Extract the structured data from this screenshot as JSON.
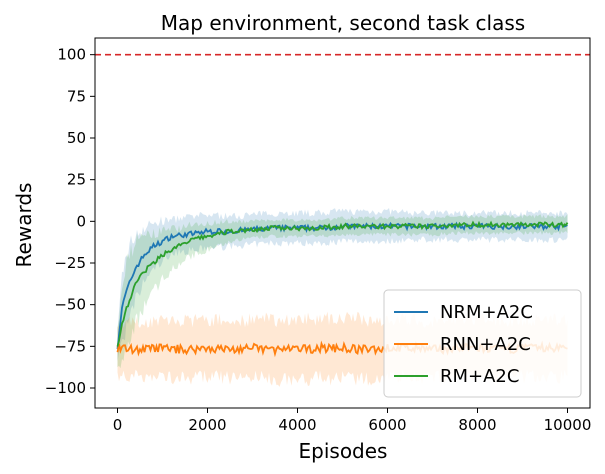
{
  "chart_data": {
    "type": "line",
    "title": "Map environment, second task class",
    "xlabel": "Episodes",
    "ylabel": "Rewards",
    "xlim": [
      -500,
      10500
    ],
    "ylim": [
      -112,
      110
    ],
    "xticks": [
      0,
      2000,
      4000,
      6000,
      8000,
      10000
    ],
    "yticks": [
      100,
      75,
      50,
      25,
      0,
      -25,
      -50,
      -75,
      -100
    ],
    "xtick_labels": [
      "0",
      "2000",
      "4000",
      "6000",
      "8000",
      "10000"
    ],
    "ytick_labels": [
      "100",
      "75",
      "50",
      "25",
      "0",
      "−25",
      "−50",
      "−75",
      "−100"
    ],
    "reference_line": {
      "y": 100,
      "color": "#d62728",
      "style": "dashed"
    },
    "legend_position": "lower-right",
    "grid": false,
    "series": [
      {
        "name": "NRM+A2C",
        "color": "#1f77b4",
        "x": [
          0,
          100,
          200,
          300,
          400,
          500,
          600,
          800,
          1000,
          1200,
          1500,
          1800,
          2000,
          2500,
          3000,
          3500,
          4000,
          4500,
          5000,
          5500,
          6000,
          6500,
          7000,
          7500,
          8000,
          8500,
          9000,
          9500,
          10000
        ],
        "y": [
          -75,
          -52,
          -42,
          -35,
          -28,
          -24,
          -20,
          -15,
          -12,
          -9,
          -8,
          -7,
          -6,
          -6,
          -5,
          -4,
          -4,
          -4,
          -3,
          -3,
          -3,
          -3,
          -3,
          -3,
          -3,
          -3,
          -3,
          -3,
          -3
        ],
        "band_halfwidth": [
          8,
          20,
          22,
          22,
          20,
          18,
          16,
          14,
          12,
          10,
          10,
          10,
          10,
          9,
          9,
          9,
          9,
          9,
          9,
          9,
          9,
          8,
          8,
          8,
          8,
          8,
          8,
          8,
          8
        ]
      },
      {
        "name": "RNN+A2C",
        "color": "#ff7f0e",
        "x": [
          0,
          500,
          1000,
          1500,
          2000,
          2500,
          3000,
          3500,
          4000,
          4500,
          5000,
          5500,
          6000,
          6500,
          7000,
          7500,
          8000,
          8500,
          9000,
          9500,
          10000
        ],
        "y": [
          -76,
          -77,
          -76,
          -77,
          -76,
          -77,
          -76,
          -77,
          -77,
          -76,
          -76,
          -77,
          -76,
          -76,
          -77,
          -76,
          -76,
          -77,
          -76,
          -76,
          -76
        ],
        "band_halfwidth": [
          16,
          16,
          17,
          17,
          17,
          17,
          17,
          18,
          18,
          18,
          18,
          18,
          17,
          17,
          17,
          17,
          17,
          17,
          17,
          17,
          17
        ]
      },
      {
        "name": "RM+A2C",
        "color": "#2ca02c",
        "x": [
          0,
          100,
          200,
          300,
          400,
          500,
          600,
          800,
          1000,
          1200,
          1500,
          1800,
          2000,
          2500,
          3000,
          3500,
          4000,
          4500,
          5000,
          5500,
          6000,
          6500,
          7000,
          7500,
          8000,
          8500,
          9000,
          9500,
          10000
        ],
        "y": [
          -75,
          -62,
          -52,
          -45,
          -38,
          -33,
          -30,
          -25,
          -20,
          -17,
          -13,
          -10,
          -9,
          -6,
          -5,
          -4,
          -4,
          -4,
          -3,
          -3,
          -3,
          -3,
          -3,
          -2,
          -2,
          -2,
          -2,
          -2,
          -2
        ],
        "band_halfwidth": [
          10,
          24,
          26,
          26,
          24,
          22,
          20,
          17,
          14,
          12,
          10,
          9,
          8,
          6,
          5,
          5,
          5,
          5,
          5,
          5,
          5,
          5,
          5,
          5,
          5,
          5,
          5,
          5,
          5
        ]
      }
    ]
  }
}
